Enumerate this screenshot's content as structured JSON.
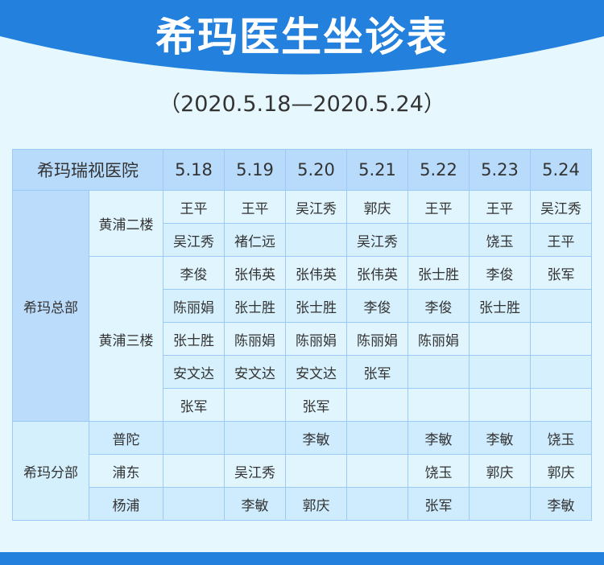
{
  "title": "希玛医生坐诊表",
  "subtitle": "（2020.5.18—2020.5.24）",
  "colors": {
    "brand_blue": "#2380dc",
    "header_cell": "#b9dbfb",
    "background": "#e6f8fe"
  },
  "table": {
    "corner": "希玛瑞视医院",
    "dates": [
      "5.18",
      "5.19",
      "5.20",
      "5.21",
      "5.22",
      "5.23",
      "5.24"
    ],
    "groups": [
      {
        "name": "希玛总部",
        "subs": [
          {
            "name": "黄浦二楼",
            "rows": [
              [
                "王平",
                "王平",
                "吴江秀",
                "郭庆",
                "王平",
                "王平",
                "吴江秀"
              ],
              [
                "吴江秀",
                "褚仁远",
                "",
                "吴江秀",
                "",
                "饶玉",
                "王平"
              ]
            ]
          },
          {
            "name": "黄浦三楼",
            "rows": [
              [
                "李俊",
                "张伟英",
                "张伟英",
                "张伟英",
                "张士胜",
                "李俊",
                "张军"
              ],
              [
                "陈丽娟",
                "张士胜",
                "张士胜",
                "李俊",
                "李俊",
                "张士胜",
                ""
              ],
              [
                "张士胜",
                "陈丽娟",
                "陈丽娟",
                "陈丽娟",
                "陈丽娟",
                "",
                ""
              ],
              [
                "安文达",
                "安文达",
                "安文达",
                "张军",
                "",
                "",
                ""
              ],
              [
                "张军",
                "",
                "张军",
                "",
                "",
                "",
                ""
              ]
            ]
          }
        ]
      },
      {
        "name": "希玛分部",
        "subs": [
          {
            "name": "普陀",
            "rows": [
              [
                "",
                "",
                "李敏",
                "",
                "李敏",
                "李敏",
                "饶玉"
              ]
            ]
          },
          {
            "name": "浦东",
            "rows": [
              [
                "",
                "吴江秀",
                "",
                "",
                "饶玉",
                "郭庆",
                "郭庆"
              ]
            ]
          },
          {
            "name": "杨浦",
            "rows": [
              [
                "",
                "李敏",
                "郭庆",
                "",
                "张军",
                "",
                "李敏"
              ]
            ]
          }
        ]
      }
    ]
  }
}
